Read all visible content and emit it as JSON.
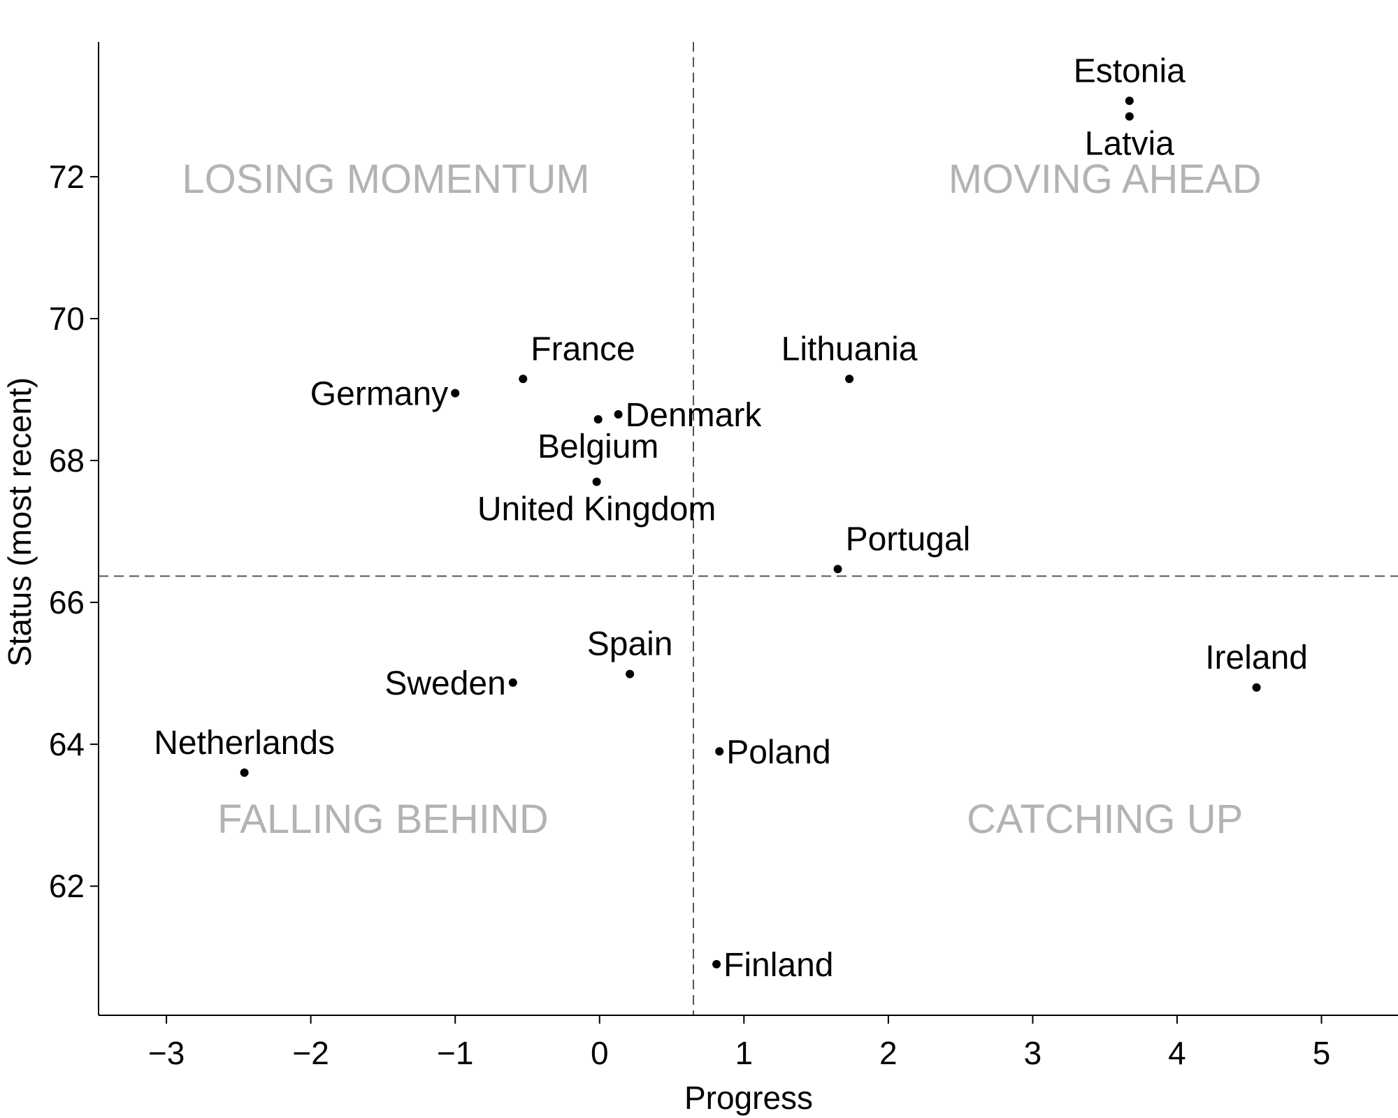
{
  "chart_data": {
    "type": "scatter",
    "xlabel": "Progress",
    "ylabel": "Status (most recent)",
    "xlim": [
      -3.47,
      5.53
    ],
    "ylim": [
      60.18,
      73.9
    ],
    "x_ticks": [
      -3,
      -2,
      -1,
      0,
      1,
      2,
      3,
      4,
      5
    ],
    "x_tick_labels": [
      "−3",
      "−2",
      "−1",
      "0",
      "1",
      "2",
      "3",
      "4",
      "5"
    ],
    "y_ticks": [
      62,
      64,
      66,
      68,
      70,
      72
    ],
    "y_tick_labels": [
      "62",
      "64",
      "66",
      "68",
      "70",
      "72"
    ],
    "grid": false,
    "reference_lines": {
      "x": 0.65,
      "y": 66.37
    },
    "quadrant_labels": [
      {
        "text": "LOSING MOMENTUM",
        "x": -1.48,
        "y": 71.97
      },
      {
        "text": "MOVING AHEAD",
        "x": 3.5,
        "y": 71.97
      },
      {
        "text": "FALLING BEHIND",
        "x": -1.5,
        "y": 62.95
      },
      {
        "text": "CATCHING UP",
        "x": 3.5,
        "y": 62.95
      }
    ],
    "points": [
      {
        "name": "Estonia",
        "x": 3.67,
        "y": 73.07,
        "label_pos": "above"
      },
      {
        "name": "Latvia",
        "x": 3.67,
        "y": 72.85,
        "label_pos": "below"
      },
      {
        "name": "Lithuania",
        "x": 1.73,
        "y": 69.15,
        "label_pos": "above"
      },
      {
        "name": "France",
        "x": -0.53,
        "y": 69.15,
        "label_pos": "above-right"
      },
      {
        "name": "Germany",
        "x": -1.0,
        "y": 68.95,
        "label_pos": "left"
      },
      {
        "name": "Denmark",
        "x": 0.13,
        "y": 68.65,
        "label_pos": "right"
      },
      {
        "name": "Belgium",
        "x": -0.01,
        "y": 68.58,
        "label_pos": "below"
      },
      {
        "name": "United Kingdom",
        "x": -0.02,
        "y": 67.7,
        "label_pos": "below"
      },
      {
        "name": "Portugal",
        "x": 1.65,
        "y": 66.47,
        "label_pos": "above-right"
      },
      {
        "name": "Spain",
        "x": 0.21,
        "y": 64.99,
        "label_pos": "above"
      },
      {
        "name": "Sweden",
        "x": -0.6,
        "y": 64.87,
        "label_pos": "left"
      },
      {
        "name": "Ireland",
        "x": 4.55,
        "y": 64.8,
        "label_pos": "above"
      },
      {
        "name": "Poland",
        "x": 0.83,
        "y": 63.9,
        "label_pos": "right"
      },
      {
        "name": "Netherlands",
        "x": -2.46,
        "y": 63.6,
        "label_pos": "above"
      },
      {
        "name": "Finland",
        "x": 0.81,
        "y": 60.9,
        "label_pos": "right"
      }
    ]
  }
}
